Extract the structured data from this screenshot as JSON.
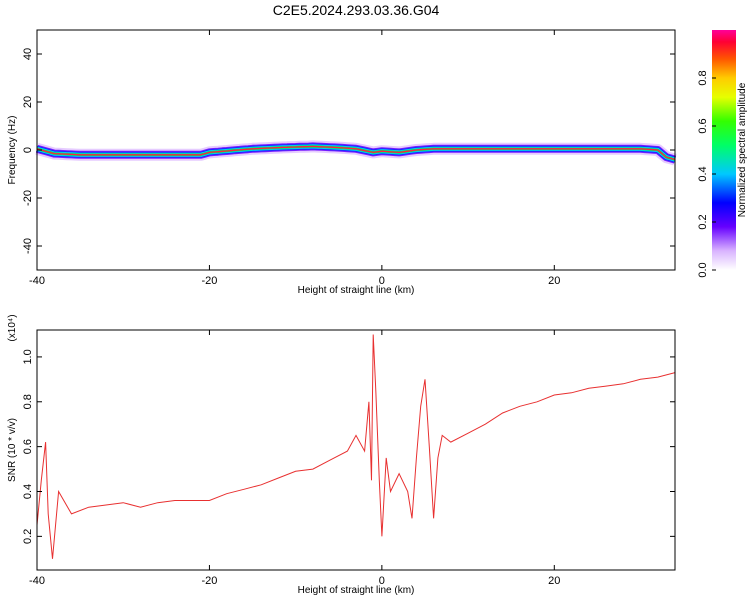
{
  "title": "C2E5.2024.293.03.36.G04",
  "chart_data": [
    {
      "type": "heatmap",
      "xlabel": "Height of straight line (km)",
      "ylabel": "Frequency (Hz)",
      "xlim": [
        -40,
        34
      ],
      "ylim": [
        -50,
        50
      ],
      "xticks": [
        "-40",
        "-20",
        "0",
        "20"
      ],
      "yticks": [
        "40",
        "20",
        "0",
        "-20",
        "-40"
      ],
      "ridge": {
        "x": [
          -40,
          -38,
          -35,
          -30,
          -25,
          -21,
          -20,
          -15,
          -12,
          -8,
          -5,
          -3,
          -1,
          0,
          2,
          4,
          6,
          10,
          20,
          30,
          32,
          33,
          34
        ],
        "freq": [
          0.5,
          -1.5,
          -2,
          -2,
          -2,
          -2,
          -1,
          0.5,
          1,
          1.5,
          1,
          0.5,
          -1,
          -0.5,
          -1,
          0,
          0.5,
          0.5,
          0.5,
          0.5,
          0,
          -3,
          -4
        ]
      },
      "colorbar": {
        "label": "Normalized spectral amplitude",
        "range": [
          0,
          1
        ],
        "ticks": [
          "0.0",
          "0.2",
          "0.4",
          "0.6",
          "0.8"
        ]
      }
    },
    {
      "type": "line",
      "xlabel": "Height of straight line (km)",
      "ylabel": "SNR (10 * v/v)",
      "multiplier": "(x10⁴)",
      "xlim": [
        -40,
        34
      ],
      "ylim": [
        0.05,
        1.12
      ],
      "xticks": [
        "-40",
        "-20",
        "0",
        "20"
      ],
      "yticks": [
        "0.2",
        "0.4",
        "0.6",
        "0.8",
        "1.0"
      ],
      "color": "#e83030",
      "series": [
        {
          "x": [
            -40,
            -39.5,
            -39,
            -38.7,
            -38.2,
            -37.5,
            -36,
            -34,
            -32,
            -30,
            -28,
            -26,
            -24,
            -22,
            -20,
            -18,
            -16,
            -14,
            -12,
            -10,
            -8,
            -6,
            -4,
            -3,
            -2,
            -1.5,
            -1.2,
            -1,
            -0.7,
            -0.3,
            0,
            0.5,
            1,
            2,
            3,
            3.5,
            4,
            4.5,
            5,
            5.5,
            6,
            6.5,
            7,
            8,
            10,
            12,
            14,
            16,
            18,
            20,
            22,
            24,
            26,
            28,
            30,
            32,
            34
          ],
          "y": [
            0.25,
            0.45,
            0.62,
            0.3,
            0.1,
            0.4,
            0.3,
            0.33,
            0.34,
            0.35,
            0.33,
            0.35,
            0.36,
            0.36,
            0.36,
            0.39,
            0.41,
            0.43,
            0.46,
            0.49,
            0.5,
            0.54,
            0.58,
            0.65,
            0.58,
            0.8,
            0.45,
            1.1,
            0.85,
            0.45,
            0.2,
            0.55,
            0.4,
            0.48,
            0.4,
            0.28,
            0.55,
            0.78,
            0.9,
            0.6,
            0.28,
            0.55,
            0.65,
            0.62,
            0.66,
            0.7,
            0.75,
            0.78,
            0.8,
            0.83,
            0.84,
            0.86,
            0.87,
            0.88,
            0.9,
            0.91,
            0.93
          ]
        }
      ]
    }
  ]
}
